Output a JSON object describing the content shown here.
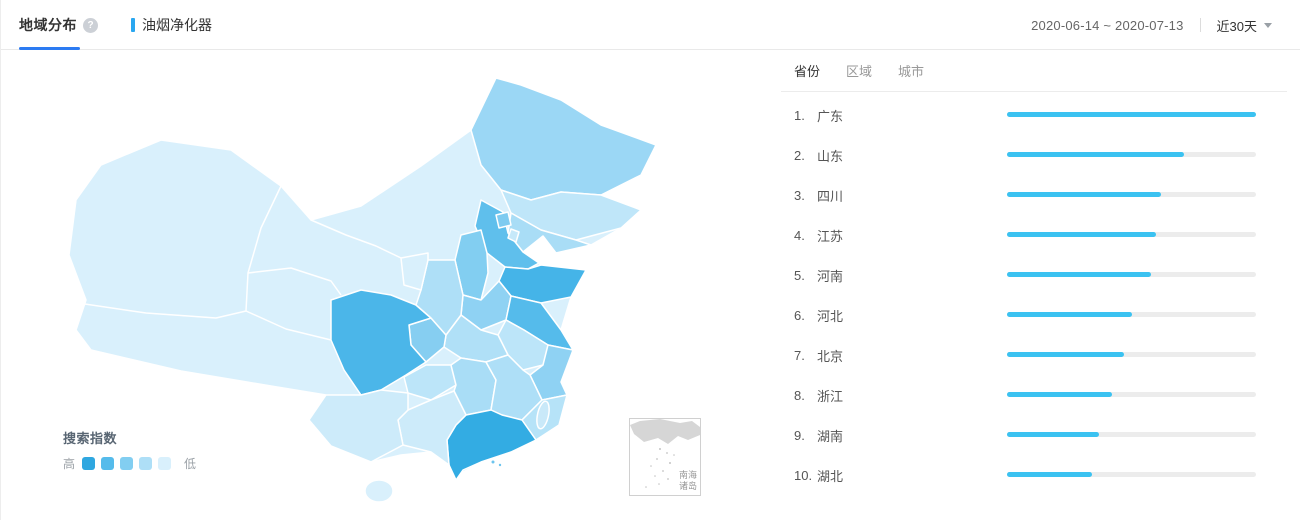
{
  "header": {
    "title": "地域分布",
    "help_icon": "?",
    "keyword": "油烟净化器",
    "date_range": "2020-06-14 ~ 2020-07-13",
    "period_label": "近30天"
  },
  "colors": {
    "accent_blue": "#2C7BF2",
    "keyword_marker": "#2AA7F0",
    "bar_fill": "#3BC2F1",
    "bar_track": "#ECECEC"
  },
  "ranking": {
    "tabs": [
      {
        "label": "省份",
        "active": true
      },
      {
        "label": "区域",
        "active": false
      },
      {
        "label": "城市",
        "active": false
      }
    ],
    "items": [
      {
        "rank": "1.",
        "name": "广东",
        "percent": 100
      },
      {
        "rank": "2.",
        "name": "山东",
        "percent": 71
      },
      {
        "rank": "3.",
        "name": "四川",
        "percent": 62
      },
      {
        "rank": "4.",
        "name": "江苏",
        "percent": 60
      },
      {
        "rank": "5.",
        "name": "河南",
        "percent": 58
      },
      {
        "rank": "6.",
        "name": "河北",
        "percent": 50
      },
      {
        "rank": "7.",
        "name": "北京",
        "percent": 47
      },
      {
        "rank": "8.",
        "name": "浙江",
        "percent": 42
      },
      {
        "rank": "9.",
        "name": "湖南",
        "percent": 37
      },
      {
        "rank": "10.",
        "name": "湖北",
        "percent": 34
      }
    ]
  },
  "chart_data": {
    "type": "bar",
    "title": "地域分布 省份排名 (搜索指数相对值)",
    "categories": [
      "广东",
      "山东",
      "四川",
      "江苏",
      "河南",
      "河北",
      "北京",
      "浙江",
      "湖南",
      "湖北"
    ],
    "values": [
      100,
      71,
      62,
      60,
      58,
      50,
      47,
      42,
      37,
      34
    ],
    "xlabel": "",
    "ylabel": "",
    "xlim": [
      0,
      100
    ],
    "legend_position": "none"
  },
  "map": {
    "base_color": "#D9F0FC",
    "legend": {
      "title": "搜索指数",
      "high": "高",
      "low": "低",
      "colors": [
        "#2FA7E0",
        "#55BBEB",
        "#82CEF1",
        "#AEDFF7",
        "#D9F0FC"
      ]
    },
    "inset": {
      "label_line1": "南海",
      "label_line2": "诸岛"
    },
    "provinces": [
      {
        "name": "黑龙江",
        "color": "#9BD7F5"
      },
      {
        "name": "吉林",
        "color": "#BFE6F9"
      },
      {
        "name": "辽宁",
        "color": "#A9DDF6"
      },
      {
        "name": "河北",
        "color": "#5FBFEC"
      },
      {
        "name": "北京",
        "color": "#7ECBF0"
      },
      {
        "name": "天津",
        "color": "#C6E9FA"
      },
      {
        "name": "山东",
        "color": "#45B4E8"
      },
      {
        "name": "山西",
        "color": "#82CEF1"
      },
      {
        "name": "河南",
        "color": "#8FD2F3"
      },
      {
        "name": "江苏",
        "color": "#55BBEB"
      },
      {
        "name": "安徽",
        "color": "#BCE5F9"
      },
      {
        "name": "浙江",
        "color": "#8FD2F3"
      },
      {
        "name": "湖北",
        "color": "#B0E0F7"
      },
      {
        "name": "重庆",
        "color": "#86CEF1"
      },
      {
        "name": "四川",
        "color": "#4BB6E9"
      },
      {
        "name": "陕西",
        "color": "#AEDFF7"
      },
      {
        "name": "宁夏",
        "color": "#D9F0FC"
      },
      {
        "name": "贵州",
        "color": "#BCE5F9"
      },
      {
        "name": "湖南",
        "color": "#A9DDF6"
      },
      {
        "name": "江西",
        "color": "#AEDFF7"
      },
      {
        "name": "福建",
        "color": "#B6E3F8"
      },
      {
        "name": "广东",
        "color": "#33ACE3"
      },
      {
        "name": "广西",
        "color": "#CDEBFA"
      },
      {
        "name": "云南",
        "color": "#CDEBFA"
      },
      {
        "name": "台湾",
        "color": "#C9E9F9"
      },
      {
        "name": "海南",
        "color": "#D9F0FC"
      }
    ]
  }
}
